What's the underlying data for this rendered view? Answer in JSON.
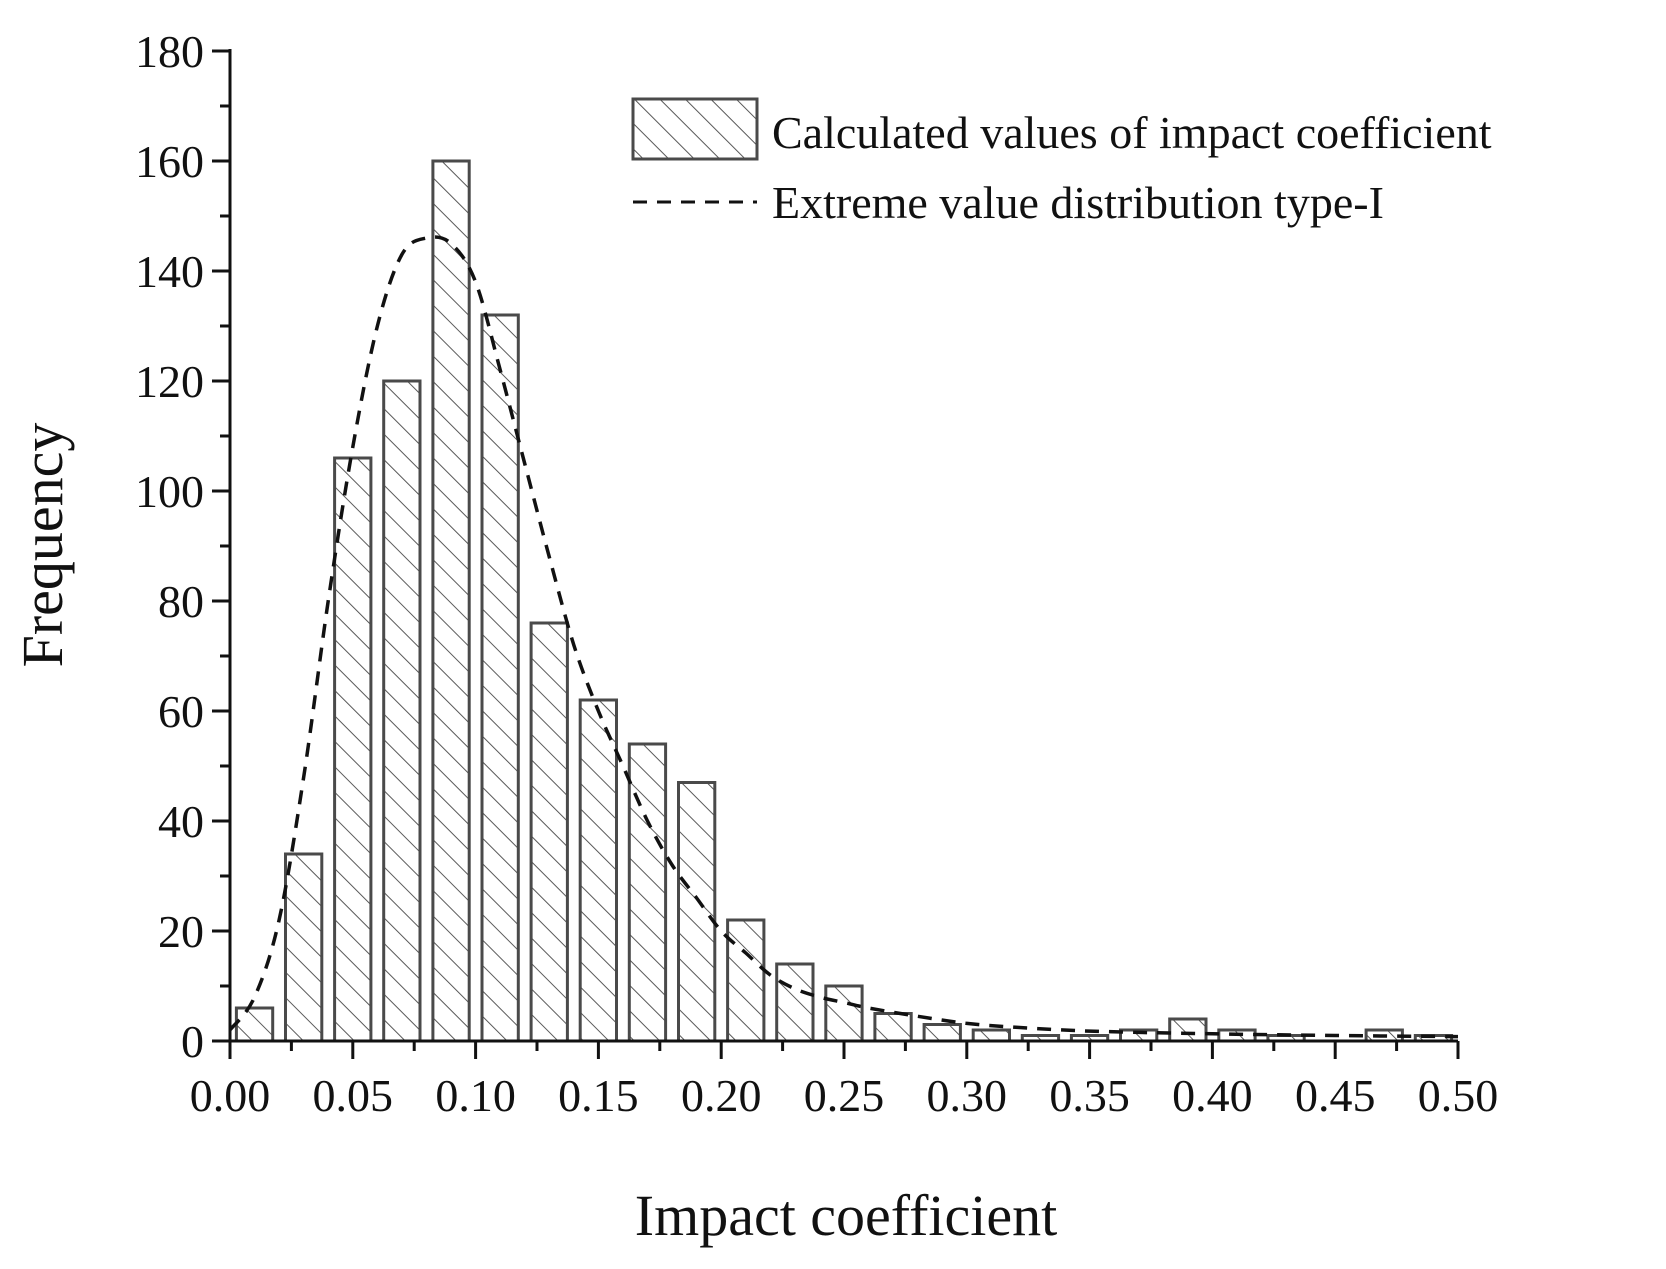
{
  "chart_data": {
    "type": "bar",
    "title": "",
    "xlabel": "Impact coefficient",
    "ylabel": "Frequency",
    "xlim": [
      0,
      0.5
    ],
    "ylim": [
      0,
      180
    ],
    "grid": false,
    "legend_position": "top-right",
    "x_ticks": [
      "0.00",
      "0.05",
      "0.10",
      "0.15",
      "0.20",
      "0.25",
      "0.30",
      "0.35",
      "0.40",
      "0.45",
      "0.50"
    ],
    "y_ticks": [
      "0",
      "20",
      "40",
      "60",
      "80",
      "100",
      "120",
      "140",
      "160",
      "180"
    ],
    "bin_width": 0.02,
    "series": [
      {
        "name": "Calculated values of impact coefficient",
        "kind": "histogram",
        "x": [
          0.01,
          0.03,
          0.05,
          0.07,
          0.09,
          0.11,
          0.13,
          0.15,
          0.17,
          0.19,
          0.21,
          0.23,
          0.25,
          0.27,
          0.29,
          0.31,
          0.33,
          0.35,
          0.37,
          0.39,
          0.41,
          0.43,
          0.45,
          0.47,
          0.49
        ],
        "values": [
          6,
          34,
          106,
          120,
          160,
          132,
          76,
          62,
          54,
          47,
          22,
          14,
          10,
          5,
          3,
          2,
          1,
          1,
          2,
          4,
          2,
          1,
          0,
          2,
          1
        ]
      },
      {
        "name": "Extreme value distribution type-I",
        "kind": "line",
        "style": "dashed",
        "x": [
          0.0,
          0.01,
          0.02,
          0.03,
          0.04,
          0.05,
          0.06,
          0.07,
          0.08,
          0.09,
          0.1,
          0.11,
          0.12,
          0.13,
          0.14,
          0.15,
          0.16,
          0.17,
          0.18,
          0.19,
          0.2,
          0.21,
          0.22,
          0.23,
          0.24,
          0.25,
          0.26,
          0.28,
          0.3,
          0.32,
          0.35,
          0.4,
          0.45,
          0.5
        ],
        "values": [
          2,
          8,
          22,
          48,
          80,
          108,
          130,
          143,
          146,
          145,
          138,
          122,
          105,
          88,
          72,
          60,
          50,
          40,
          32,
          26,
          20,
          16,
          12,
          9.5,
          8,
          7,
          6,
          4.5,
          3.2,
          2.5,
          1.8,
          1.3,
          1.0,
          0.8
        ]
      }
    ]
  },
  "colors": {
    "bar_stroke": "#4a4a4a",
    "hatch": "#5a5a5a",
    "line": "#111111",
    "axis": "#111111"
  }
}
